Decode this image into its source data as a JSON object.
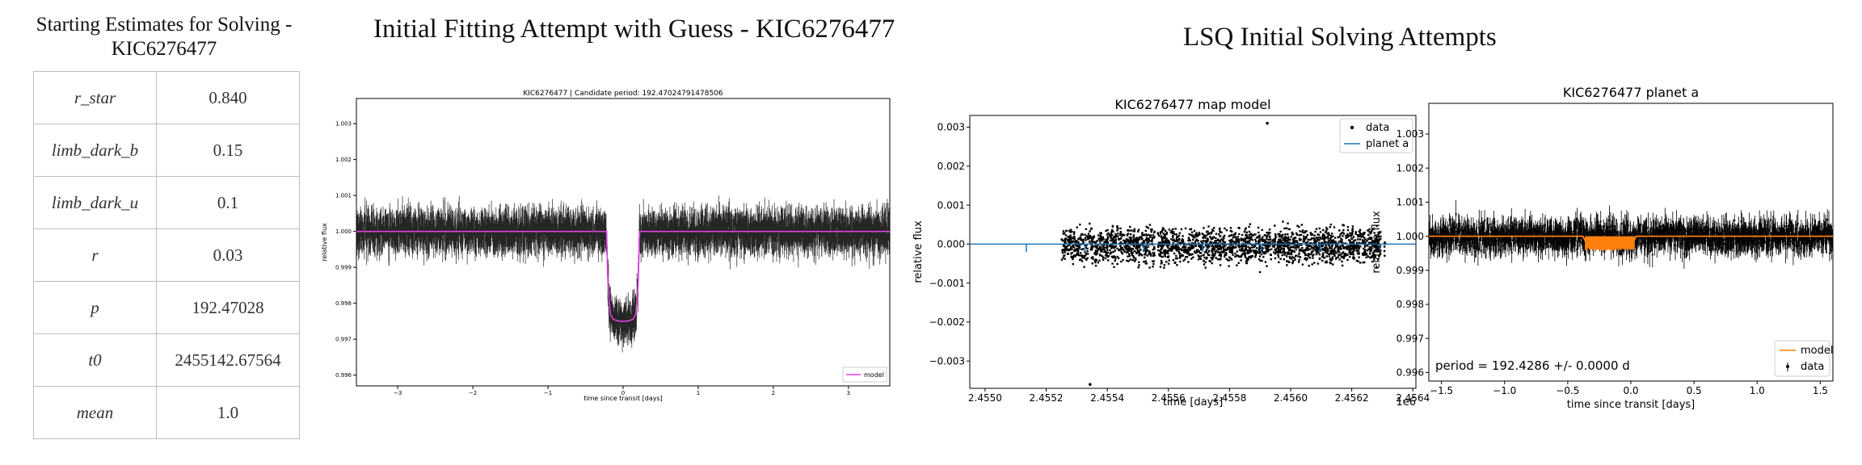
{
  "estimates": {
    "title": "Starting Estimates for Solving - KIC6276477",
    "rows": [
      {
        "name": "r_star",
        "value": "0.840"
      },
      {
        "name": "limb_dark_b",
        "value": "0.15"
      },
      {
        "name": "limb_dark_u",
        "value": "0.1"
      },
      {
        "name": "r",
        "value": "0.03"
      },
      {
        "name": "p",
        "value": "192.47028"
      },
      {
        "name": "t0",
        "value": "2455142.67564"
      },
      {
        "name": "mean",
        "value": "1.0"
      }
    ]
  },
  "fit_section": {
    "title": "Initial Fitting Attempt with Guess - KIC6276477"
  },
  "lsq_section": {
    "title": "LSQ Initial Solving Attempts"
  },
  "colors": {
    "data": "#000000",
    "model_magenta": "#e040e0",
    "planet_blue": "#1f77b4",
    "model_orange": "#ff7f0e"
  },
  "chart_data": [
    {
      "id": "fit",
      "type": "line",
      "title": "KIC6276477 | Candidate period: 192.47024791478506",
      "xlabel": "time since transit [days]",
      "ylabel": "relative flux",
      "xlim": [
        -3.55,
        3.55
      ],
      "ylim": [
        0.9957,
        1.0037
      ],
      "xticks": [
        -3,
        -2,
        -1,
        0,
        1,
        2,
        3
      ],
      "xtick_labels": [
        "−3",
        "−2",
        "−1",
        "0",
        "1",
        "2",
        "3"
      ],
      "yticks": [
        0.996,
        0.997,
        0.998,
        0.999,
        1.0,
        1.001,
        1.002,
        1.003
      ],
      "ytick_labels": [
        "0.996",
        "0.997",
        "0.998",
        "0.999",
        "1.000",
        "1.001",
        "1.002",
        "1.003"
      ],
      "series": [
        {
          "name": "model",
          "kind": "line",
          "color": "#e040e0",
          "x": [
            -3.55,
            -0.22,
            -0.2,
            -0.17,
            -0.13,
            -0.05,
            0.05,
            0.13,
            0.17,
            0.2,
            0.22,
            3.55
          ],
          "y": [
            1.0,
            1.0,
            0.9985,
            0.9977,
            0.99755,
            0.9975,
            0.9975,
            0.99755,
            0.9977,
            0.9985,
            1.0,
            1.0
          ]
        }
      ],
      "noise": {
        "sigma": 0.00035,
        "count": 2200
      },
      "legend": "lower-right",
      "grid": false
    },
    {
      "id": "map",
      "type": "scatter",
      "title": "KIC6276477 map model",
      "xlabel": "time [days]",
      "ylabel": "relative flux",
      "offset_label": "1e6",
      "xlim": [
        2.45495,
        2.45641
      ],
      "ylim": [
        -0.0037,
        0.0033
      ],
      "xticks": [
        2.455,
        2.4552,
        2.4554,
        2.4556,
        2.4558,
        2.456,
        2.4562,
        2.4564
      ],
      "xtick_labels": [
        "2.4550",
        "2.4552",
        "2.4554",
        "2.4556",
        "2.4558",
        "2.4560",
        "2.4562",
        "2.4564"
      ],
      "yticks": [
        -0.003,
        -0.002,
        -0.001,
        0.0,
        0.001,
        0.002,
        0.003
      ],
      "ytick_labels": [
        "−0.003",
        "−0.002",
        "−0.001",
        "0.000",
        "0.001",
        "0.002",
        "0.003"
      ],
      "series": [
        {
          "name": "data",
          "kind": "scatter",
          "color": "#000000"
        },
        {
          "name": "planet a",
          "kind": "line",
          "color": "#1f77b4",
          "y": 0.0,
          "transit_x": [
            2.455135,
            2.455327,
            2.45552,
            2.455712,
            2.455905,
            2.456097,
            2.45629
          ]
        }
      ],
      "outliers": {
        "x": [
          2.4553437,
          2.4559236
        ],
        "y": [
          -0.0036,
          0.0031
        ]
      },
      "gaps_x": [
        2.45556,
        2.4563
      ],
      "noise": {
        "sigma": 0.0004,
        "count": 2600
      },
      "legend": "upper-right",
      "grid": false
    },
    {
      "id": "planet",
      "type": "scatter",
      "title": "KIC6276477 planet a",
      "xlabel": "time since transit [days]",
      "ylabel": "relative flux",
      "xlim": [
        -1.6,
        1.6
      ],
      "ylim": [
        0.99575,
        1.0039
      ],
      "xticks": [
        -1.5,
        -1.0,
        -0.5,
        0.0,
        0.5,
        1.0,
        1.5
      ],
      "xtick_labels": [
        "−1.5",
        "−1.0",
        "−0.5",
        "0.0",
        "0.5",
        "1.0",
        "1.5"
      ],
      "yticks": [
        0.996,
        0.997,
        0.998,
        0.999,
        1.0,
        1.001,
        1.002,
        1.003
      ],
      "ytick_labels": [
        "0.996",
        "0.997",
        "0.998",
        "0.999",
        "1.000",
        "1.001",
        "1.002",
        "1.003"
      ],
      "series": [
        {
          "name": "model",
          "kind": "line",
          "color": "#ff7f0e",
          "x": [
            -1.6,
            -0.38,
            -0.34,
            -0.2,
            0.0,
            0.04,
            1.6
          ],
          "y": [
            1.0,
            1.0,
            0.9997,
            0.99965,
            0.99965,
            1.0,
            1.0
          ]
        },
        {
          "name": "data",
          "kind": "errorbar",
          "color": "#000000"
        }
      ],
      "annotation": "period = 192.4286 +/- 0.0000 d",
      "noise": {
        "sigma": 0.00035,
        "count": 1100
      },
      "legend": "lower-right",
      "grid": false
    }
  ]
}
